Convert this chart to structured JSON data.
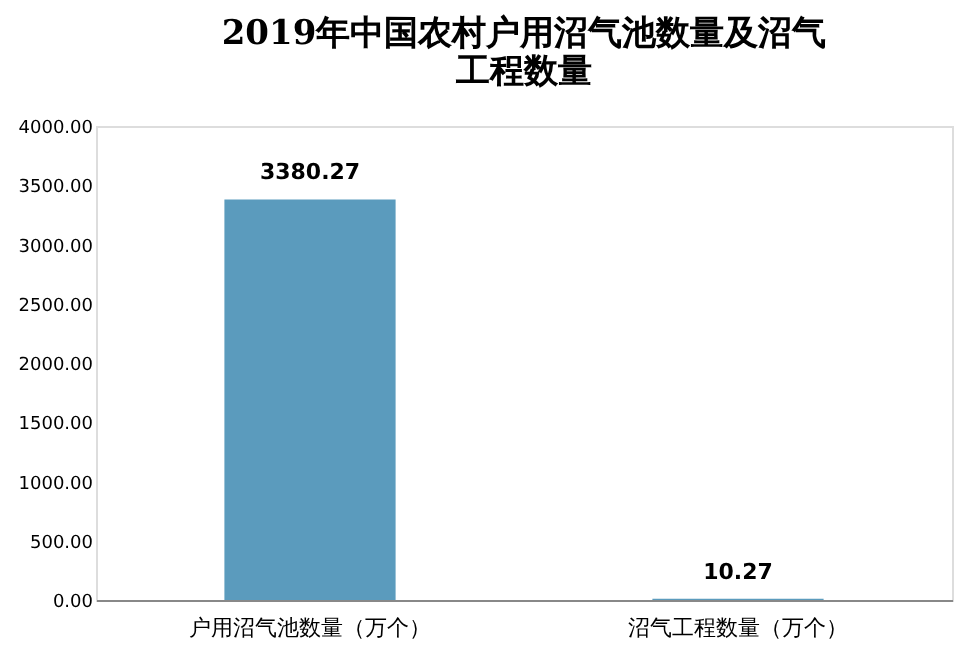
{
  "chart_data": {
    "type": "bar",
    "title": "2019年中国农村户用沼气池数量及沼气工程数量",
    "categories": [
      "户用沼气池数量（万个）",
      "沼气工程数量（万个）"
    ],
    "values": [
      3380.27,
      10.27
    ],
    "color": "#5b9bbd",
    "ylim": [
      0,
      4000
    ],
    "yticks": [
      {
        "value": 0,
        "label": "0.00"
      },
      {
        "value": 500,
        "label": "500.00"
      },
      {
        "value": 1000,
        "label": "1000.00"
      },
      {
        "value": 1500,
        "label": "1500.00"
      },
      {
        "value": 2000,
        "label": "2000.00"
      },
      {
        "value": 2500,
        "label": "2500.00"
      },
      {
        "value": 3000,
        "label": "3000.00"
      },
      {
        "value": 3500,
        "label": "3500.00"
      },
      {
        "value": 4000,
        "label": "4000.00"
      }
    ],
    "data_labels": true,
    "grid": false
  }
}
